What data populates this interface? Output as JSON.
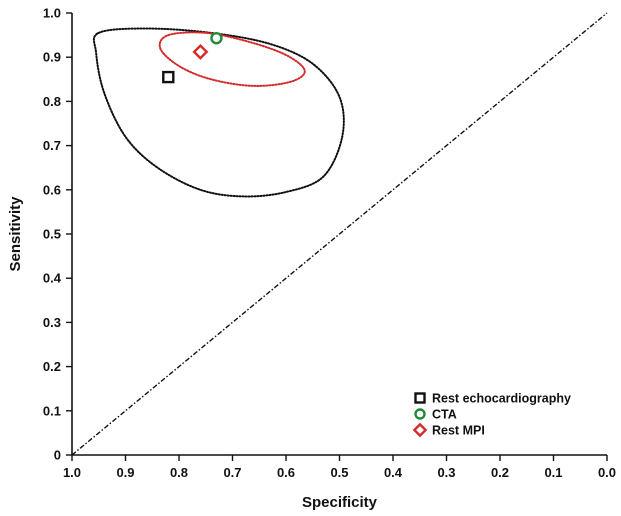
{
  "chart_data": {
    "type": "scatter",
    "title": "",
    "xlabel": "Specificity",
    "ylabel": "Sensitivity",
    "xlim": [
      1.0,
      0.0
    ],
    "ylim": [
      0,
      1.0
    ],
    "x_reversed": true,
    "x_ticks": [
      "1.0",
      "0.9",
      "0.8",
      "0.7",
      "0.6",
      "0.5",
      "0.4",
      "0.3",
      "0.2",
      "0.1",
      "0.0"
    ],
    "y_ticks": [
      "0",
      "0.1",
      "0.2",
      "0.3",
      "0.4",
      "0.5",
      "0.6",
      "0.7",
      "0.8",
      "0.9",
      "1.0"
    ],
    "grid": false,
    "legend_position": "bottom-right",
    "series": [
      {
        "name": "Rest echocardiography",
        "marker": "square",
        "color": "#111111",
        "x": 0.82,
        "y": 0.855
      },
      {
        "name": "CTA",
        "marker": "circle",
        "color": "#1f8a3a",
        "x": 0.73,
        "y": 0.943
      },
      {
        "name": "Rest MPI",
        "marker": "diamond",
        "color": "#d42a2a",
        "x": 0.76,
        "y": 0.912
      }
    ],
    "confidence_regions": [
      {
        "series": "Rest echocardiography",
        "color": "#111111",
        "style": "dotted",
        "points": [
          [
            0.95,
            0.955
          ],
          [
            0.86,
            0.965
          ],
          [
            0.74,
            0.955
          ],
          [
            0.63,
            0.93
          ],
          [
            0.55,
            0.885
          ],
          [
            0.5,
            0.81
          ],
          [
            0.495,
            0.72
          ],
          [
            0.53,
            0.63
          ],
          [
            0.6,
            0.595
          ],
          [
            0.68,
            0.585
          ],
          [
            0.76,
            0.6
          ],
          [
            0.84,
            0.65
          ],
          [
            0.9,
            0.72
          ],
          [
            0.94,
            0.82
          ],
          [
            0.955,
            0.91
          ]
        ]
      },
      {
        "series": "Rest MPI",
        "color": "#d42a2a",
        "style": "dotted",
        "points": [
          [
            0.82,
            0.95
          ],
          [
            0.75,
            0.955
          ],
          [
            0.67,
            0.935
          ],
          [
            0.6,
            0.905
          ],
          [
            0.565,
            0.87
          ],
          [
            0.59,
            0.845
          ],
          [
            0.66,
            0.835
          ],
          [
            0.74,
            0.85
          ],
          [
            0.8,
            0.88
          ],
          [
            0.835,
            0.92
          ]
        ]
      }
    ],
    "reference_line": {
      "from": [
        1.0,
        0.0
      ],
      "to": [
        0.0,
        1.0
      ],
      "style": "dash-dot",
      "color": "#111111"
    }
  }
}
